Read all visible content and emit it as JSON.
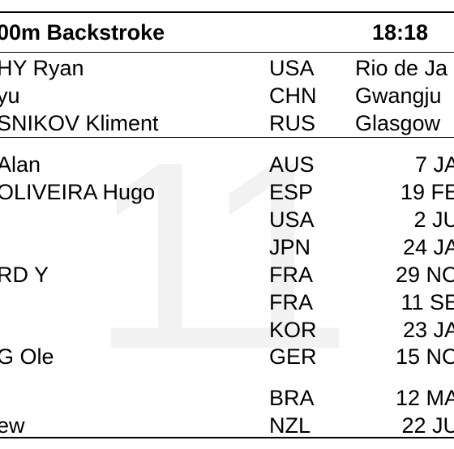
{
  "header": {
    "event": "00m Backstroke",
    "time": "18:18"
  },
  "watermark": "11",
  "top_records": [
    {
      "name": "HY Ryan",
      "nat": "USA",
      "place": "Rio de Ja"
    },
    {
      "name": "yu",
      "nat": "CHN",
      "place": "Gwangju"
    },
    {
      "name": "SNIKOV Kliment",
      "nat": "RUS",
      "place": "Glasgow"
    }
  ],
  "entries": [
    {
      "name": "Alan",
      "nat": "AUS",
      "date": "7 JA"
    },
    {
      "name": "OLIVEIRA Hugo",
      "nat": "ESP",
      "date": "19 FE"
    },
    {
      "name": "",
      "nat": "USA",
      "date": "2 JU"
    },
    {
      "name": "",
      "nat": "JPN",
      "date": "24 JA"
    },
    {
      "name": "RD Y",
      "nat": "FRA",
      "date": "29 NO"
    },
    {
      "name": "",
      "nat": "FRA",
      "date": "11 SE"
    },
    {
      "name": "",
      "nat": "KOR",
      "date": "23 JA"
    },
    {
      "name": "G Ole",
      "nat": "GER",
      "date": "15 NO"
    },
    {
      "name": "",
      "nat": "BRA",
      "date": "12 MA"
    },
    {
      "name": "ew",
      "nat": "NZL",
      "date": "22 JU"
    }
  ]
}
